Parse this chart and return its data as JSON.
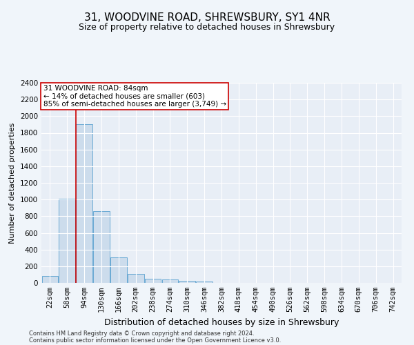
{
  "title1": "31, WOODVINE ROAD, SHREWSBURY, SY1 4NR",
  "title2": "Size of property relative to detached houses in Shrewsbury",
  "xlabel": "Distribution of detached houses by size in Shrewsbury",
  "ylabel": "Number of detached properties",
  "categories": [
    "22sqm",
    "58sqm",
    "94sqm",
    "130sqm",
    "166sqm",
    "202sqm",
    "238sqm",
    "274sqm",
    "310sqm",
    "346sqm",
    "382sqm",
    "418sqm",
    "454sqm",
    "490sqm",
    "526sqm",
    "562sqm",
    "598sqm",
    "634sqm",
    "670sqm",
    "706sqm",
    "742sqm"
  ],
  "values": [
    80,
    1010,
    1900,
    860,
    310,
    110,
    50,
    40,
    25,
    15,
    0,
    0,
    0,
    0,
    0,
    0,
    0,
    0,
    0,
    0,
    0
  ],
  "bar_color": "#ccdcec",
  "bar_edge_color": "#6aaad4",
  "vline_color": "#cc0000",
  "vline_x": 1.5,
  "annotation_text": "31 WOODVINE ROAD: 84sqm\n← 14% of detached houses are smaller (603)\n85% of semi-detached houses are larger (3,749) →",
  "annotation_box_color": "#ffffff",
  "annotation_box_edge": "#cc0000",
  "ylim": [
    0,
    2400
  ],
  "yticks": [
    0,
    200,
    400,
    600,
    800,
    1000,
    1200,
    1400,
    1600,
    1800,
    2000,
    2200,
    2400
  ],
  "footer1": "Contains HM Land Registry data © Crown copyright and database right 2024.",
  "footer2": "Contains public sector information licensed under the Open Government Licence v3.0.",
  "bg_color": "#f0f5fa",
  "plot_bg_color": "#e8eef6",
  "grid_color": "#ffffff",
  "title1_fontsize": 11,
  "title2_fontsize": 9,
  "ylabel_fontsize": 8,
  "xlabel_fontsize": 9,
  "tick_fontsize": 7.5,
  "ann_fontsize": 7.5,
  "footer_fontsize": 6
}
